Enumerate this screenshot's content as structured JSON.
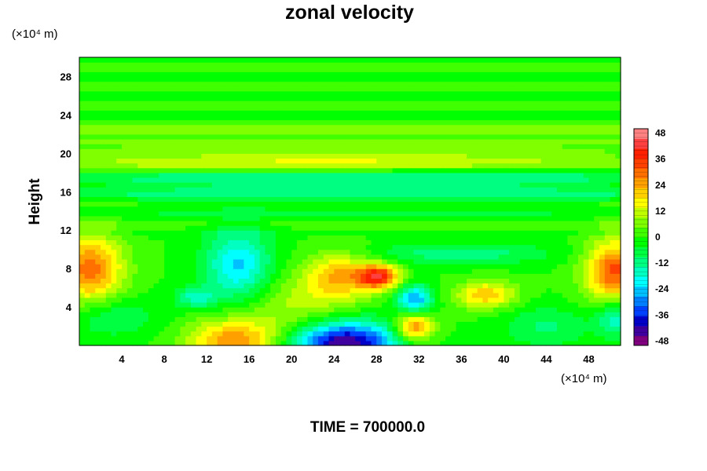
{
  "chart_data": {
    "type": "heatmap",
    "title": "zonal velocity",
    "ylabel": "Height",
    "xlabel": "",
    "x_unit": "(×10⁴ m)",
    "y_unit": "(×10⁴ m)",
    "x_ticks": [
      4,
      8,
      12,
      16,
      20,
      24,
      28,
      32,
      36,
      40,
      44,
      48
    ],
    "y_ticks": [
      4,
      8,
      12,
      16,
      20,
      24,
      28
    ],
    "xlim": [
      0,
      51
    ],
    "ylim": [
      0,
      30
    ],
    "colorbar": {
      "ticks": [
        48,
        36,
        24,
        12,
        0,
        -12,
        -24,
        -36,
        -48
      ],
      "min": -50,
      "max": 50,
      "colors": [
        "#800080",
        "#4000a0",
        "#0000c8",
        "#0040ff",
        "#0080ff",
        "#00c0ff",
        "#00ffff",
        "#00ffc0",
        "#00ff80",
        "#00ff40",
        "#00ff00",
        "#40ff00",
        "#80ff00",
        "#c0ff00",
        "#ffff00",
        "#ffd000",
        "#ffa000",
        "#ff7000",
        "#ff4000",
        "#ff2000",
        "#ff4040",
        "#ff8080"
      ]
    },
    "features": [
      {
        "x": 25,
        "y": 0.3,
        "sx": 3.5,
        "sy": 1.6,
        "amp": -46
      },
      {
        "x": 14.5,
        "y": 0.5,
        "sx": 3,
        "sy": 1.6,
        "amp": 26
      },
      {
        "x": 15,
        "y": 8.3,
        "sx": 2.2,
        "sy": 2.6,
        "amp": -24
      },
      {
        "x": 11,
        "y": 5,
        "sx": 1.3,
        "sy": 0.8,
        "amp": -16
      },
      {
        "x": 28.2,
        "y": 7.2,
        "sx": 1.4,
        "sy": 0.9,
        "amp": 38
      },
      {
        "x": 24.5,
        "y": 7.2,
        "sx": 2.2,
        "sy": 1.8,
        "amp": 22
      },
      {
        "x": 31.6,
        "y": 4.8,
        "sx": 1.2,
        "sy": 1.1,
        "amp": -28
      },
      {
        "x": 31.6,
        "y": 2,
        "sx": 1.3,
        "sy": 1.1,
        "amp": 30
      },
      {
        "x": 38.3,
        "y": 5.3,
        "sx": 2,
        "sy": 1,
        "amp": 22
      },
      {
        "x": 1,
        "y": 8,
        "sx": 2.2,
        "sy": 2.5,
        "amp": 30
      },
      {
        "x": 50.5,
        "y": 7.8,
        "sx": 2,
        "sy": 2.3,
        "amp": 33
      },
      {
        "x": 50.5,
        "y": 3,
        "sx": 1.2,
        "sy": 1.4,
        "amp": -18
      },
      {
        "x": 36,
        "y": 9.6,
        "sx": 6,
        "sy": 0.8,
        "amp": -12
      },
      {
        "x": 3,
        "y": 3,
        "sx": 3,
        "sy": 1.5,
        "amp": -10
      },
      {
        "x": 20,
        "y": 4,
        "sx": 3.5,
        "sy": 2.5,
        "amp": 10
      },
      {
        "x": 44,
        "y": 2,
        "sx": 3,
        "sy": 1.5,
        "amp": -10
      },
      {
        "x": 36,
        "y": 17,
        "sx": 14,
        "sy": 1.2,
        "amp": -14
      },
      {
        "x": 10,
        "y": 17,
        "sx": 10,
        "sy": 1,
        "amp": -10
      },
      {
        "x": 25,
        "y": 19.3,
        "sx": 22,
        "sy": 0.9,
        "amp": 16
      },
      {
        "x": 25,
        "y": 14.5,
        "sx": 20,
        "sy": 0.8,
        "amp": -4
      }
    ],
    "time_label": "TIME = 700000.0"
  }
}
